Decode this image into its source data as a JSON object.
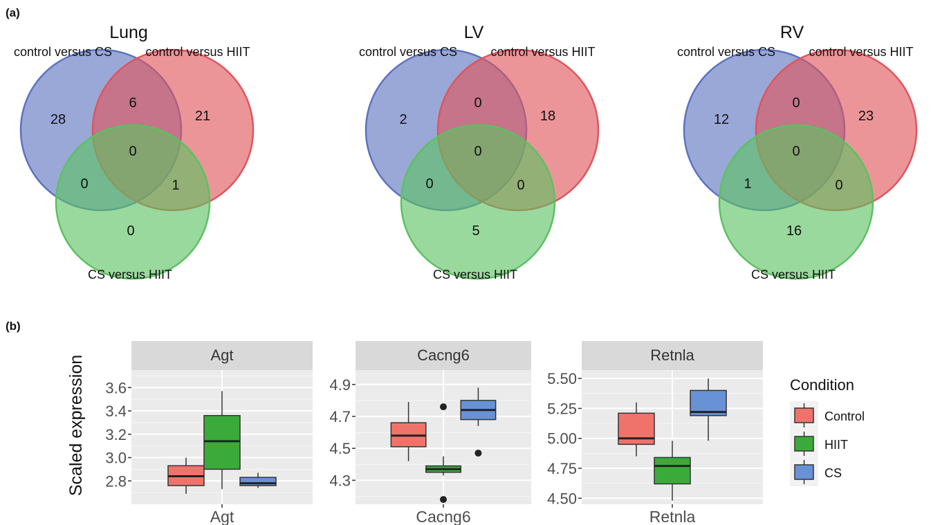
{
  "panel_labels": {
    "a": "(a)",
    "b": "(b)"
  },
  "venns": [
    {
      "title": "Lung",
      "set_labels": [
        "control versus CS",
        "control versus HIIT",
        "CS versus HIIT"
      ],
      "counts": {
        "a_only": "28",
        "ab": "6",
        "b_only": "21",
        "abc": "0",
        "ac": "0",
        "bc": "1",
        "c_only": "0"
      }
    },
    {
      "title": "LV",
      "set_labels": [
        "control versus CS",
        "control versus HIIT",
        "CS versus HIIT"
      ],
      "counts": {
        "a_only": "2",
        "ab": "0",
        "b_only": "18",
        "abc": "0",
        "ac": "0",
        "bc": "0",
        "c_only": "5"
      }
    },
    {
      "title": "RV",
      "set_labels": [
        "control versus CS",
        "control versus HIIT",
        "CS versus HIIT"
      ],
      "counts": {
        "a_only": "12",
        "ab": "0",
        "b_only": "23",
        "abc": "0",
        "ac": "1",
        "bc": "0",
        "c_only": "16"
      }
    }
  ],
  "venn_colors": {
    "a": "#5b73bf",
    "b": "#e0545b",
    "c": "#5cc161"
  },
  "chart_data": {
    "type": "boxplot",
    "ylabel": "Scaled expression",
    "legend": {
      "title": "Condition",
      "position": "right",
      "entries": [
        {
          "name": "Control",
          "color": "#f0736b"
        },
        {
          "name": "HIIT",
          "color": "#3aab3a"
        },
        {
          "name": "CS",
          "color": "#6792d6"
        }
      ]
    },
    "grid": true,
    "facets": [
      {
        "strip": "Agt",
        "xlabel": "Agt",
        "ylim": [
          2.6,
          3.75
        ],
        "yticks": [
          "2.8",
          "3.0",
          "3.2",
          "3.4",
          "3.6"
        ],
        "boxes": [
          {
            "group": "Control",
            "min": 2.69,
            "q1": 2.76,
            "median": 2.84,
            "q3": 2.93,
            "max": 3.0,
            "outliers": []
          },
          {
            "group": "HIIT",
            "min": 2.73,
            "q1": 2.9,
            "median": 3.14,
            "q3": 3.36,
            "max": 3.57,
            "outliers": []
          },
          {
            "group": "CS",
            "min": 2.74,
            "q1": 2.76,
            "median": 2.78,
            "q3": 2.83,
            "max": 2.87,
            "outliers": []
          }
        ]
      },
      {
        "strip": "Cacng6",
        "xlabel": "Cacng6",
        "ylim": [
          4.15,
          4.99
        ],
        "yticks": [
          "4.3",
          "4.5",
          "4.7",
          "4.9"
        ],
        "boxes": [
          {
            "group": "Control",
            "min": 4.42,
            "q1": 4.51,
            "median": 4.58,
            "q3": 4.66,
            "max": 4.79,
            "outliers": []
          },
          {
            "group": "HIIT",
            "min": 4.33,
            "q1": 4.35,
            "median": 4.37,
            "q3": 4.39,
            "max": 4.45,
            "outliers": [
              4.76,
              4.18
            ]
          },
          {
            "group": "CS",
            "min": 4.64,
            "q1": 4.68,
            "median": 4.74,
            "q3": 4.8,
            "max": 4.88,
            "outliers": [
              4.47
            ]
          }
        ]
      },
      {
        "strip": "Retnla",
        "xlabel": "Retnla",
        "ylim": [
          4.45,
          5.57
        ],
        "yticks": [
          "4.50",
          "4.75",
          "5.00",
          "5.25",
          "5.50"
        ],
        "boxes": [
          {
            "group": "Control",
            "min": 4.85,
            "q1": 4.95,
            "median": 5.0,
            "q3": 5.21,
            "max": 5.3,
            "outliers": []
          },
          {
            "group": "HIIT",
            "min": 4.48,
            "q1": 4.62,
            "median": 4.77,
            "q3": 4.84,
            "max": 4.98,
            "outliers": []
          },
          {
            "group": "CS",
            "min": 4.98,
            "q1": 5.19,
            "median": 5.22,
            "q3": 5.4,
            "max": 5.5,
            "outliers": []
          }
        ]
      }
    ]
  }
}
